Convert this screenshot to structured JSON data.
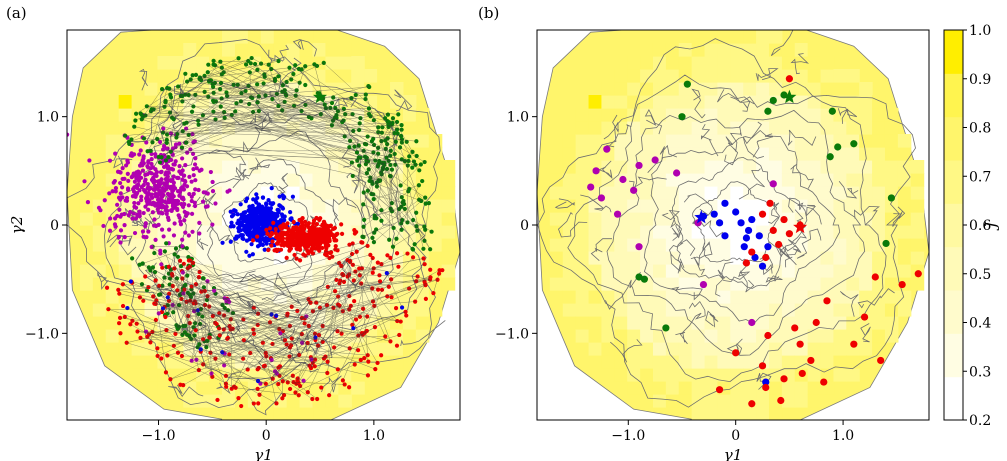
{
  "figure": {
    "panels": [
      {
        "label": "(a)"
      },
      {
        "label": "(b)"
      }
    ]
  },
  "chart_data": [
    {
      "type": "scatter",
      "panel": "(a)",
      "title": "",
      "xlabel": "γ1",
      "ylabel": "γ2",
      "xlim": [
        -1.85,
        1.8
      ],
      "ylim": [
        -1.8,
        1.8
      ],
      "xticks": [
        {
          "value": -1.0,
          "label": "−1.0"
        },
        {
          "value": 0,
          "label": "0"
        },
        {
          "value": 1.0,
          "label": "1.0"
        }
      ],
      "yticks": [
        {
          "value": 1.0,
          "label": "1.0"
        },
        {
          "value": 0,
          "label": "0"
        },
        {
          "value": -1.0,
          "label": "−1.0"
        }
      ],
      "background": "filled contour of J over the (γ1, γ2) plane with grey contour lines; J is lowest (white) near the centre and highest (yellow) at the outer edge",
      "grid": false,
      "series": [
        {
          "color": "#b000b0",
          "region": "cluster",
          "center": [
            -1.0,
            0.35
          ],
          "spread": [
            0.22,
            0.22
          ],
          "count": 450
        },
        {
          "color": "#0000ee",
          "region": "cluster",
          "center": [
            -0.05,
            0.02
          ],
          "spread": [
            0.12,
            0.1
          ],
          "count": 420
        },
        {
          "color": "#ee0000",
          "region": "cluster",
          "center": [
            0.38,
            -0.12
          ],
          "spread": [
            0.16,
            0.07
          ],
          "count": 420
        },
        {
          "color": "#0a7a0a",
          "region": "ring",
          "angle_range_deg": [
            20,
            150
          ],
          "radius": [
            1.05,
            1.6
          ],
          "count": 260
        },
        {
          "color": "#0a7a0a",
          "region": "ring",
          "angle_range_deg": [
            -10,
            40
          ],
          "radius": [
            0.9,
            1.55
          ],
          "count": 110
        },
        {
          "color": "#0a7a0a",
          "region": "ring",
          "angle_range_deg": [
            190,
            250
          ],
          "radius": [
            0.75,
            1.3
          ],
          "count": 90
        },
        {
          "color": "#ee0000",
          "region": "ring",
          "angle_range_deg": [
            200,
            350
          ],
          "radius": [
            0.75,
            1.7
          ],
          "count": 330
        },
        {
          "color": "#b000b0",
          "region": "ring",
          "angle_range_deg": [
            190,
            300
          ],
          "radius": [
            0.7,
            1.5
          ],
          "count": 30
        },
        {
          "color": "#0000ee",
          "region": "ring",
          "angle_range_deg": [
            200,
            340
          ],
          "radius": [
            0.8,
            1.5
          ],
          "count": 14
        }
      ]
    },
    {
      "type": "scatter",
      "panel": "(b)",
      "title": "",
      "xlabel": "γ1",
      "ylabel": "",
      "xlim": [
        -1.85,
        1.8
      ],
      "ylim": [
        -1.8,
        1.8
      ],
      "xticks": [
        {
          "value": -1.0,
          "label": "−1.0"
        },
        {
          "value": 0,
          "label": "0"
        },
        {
          "value": 1.0,
          "label": "1.0"
        }
      ],
      "yticks": [
        {
          "value": 1.0,
          "label": "1.0"
        },
        {
          "value": 0,
          "label": "0"
        },
        {
          "value": -1.0,
          "label": "−1.0"
        }
      ],
      "grid": false,
      "series": [
        {
          "color": "#b000b0",
          "points": [
            [
              -1.2,
              0.7
            ],
            [
              -0.75,
              0.6
            ],
            [
              -1.3,
              0.5
            ],
            [
              -0.9,
              0.55
            ],
            [
              -1.05,
              0.42
            ],
            [
              -1.25,
              0.25
            ],
            [
              -0.95,
              0.32
            ],
            [
              -0.55,
              0.48
            ],
            [
              -1.35,
              0.35
            ],
            [
              -1.1,
              0.1
            ],
            [
              -0.9,
              -0.2
            ],
            [
              -0.35,
              0.02
            ],
            [
              0.35,
              0.38
            ],
            [
              -0.3,
              -0.55
            ],
            [
              0.15,
              -0.9
            ]
          ]
        },
        {
          "color": "#0000ee",
          "points": [
            [
              -0.3,
              0.08
            ],
            [
              -0.2,
              0.1
            ],
            [
              -0.15,
              0.02
            ],
            [
              -0.1,
              -0.1
            ],
            [
              0.05,
              0.02
            ],
            [
              0.1,
              -0.12
            ],
            [
              0.15,
              0.05
            ],
            [
              0.08,
              -0.2
            ],
            [
              0.22,
              -0.1
            ],
            [
              0.3,
              -0.2
            ],
            [
              0.18,
              -0.3
            ],
            [
              0.25,
              -0.38
            ],
            [
              0.0,
              0.12
            ],
            [
              -0.1,
              0.2
            ],
            [
              0.28,
              -1.45
            ],
            [
              0.12,
              -0.05
            ]
          ]
        },
        {
          "color": "#ee0000",
          "points": [
            [
              0.32,
              0.2
            ],
            [
              0.25,
              0.1
            ],
            [
              0.35,
              -0.05
            ],
            [
              0.45,
              0.05
            ],
            [
              0.5,
              -0.08
            ],
            [
              0.6,
              0.0
            ],
            [
              0.4,
              -0.18
            ],
            [
              0.28,
              -0.3
            ],
            [
              0.15,
              -0.25
            ],
            [
              0.1,
              -0.35
            ],
            [
              0.5,
              1.35
            ],
            [
              1.7,
              -0.45
            ],
            [
              1.55,
              -0.55
            ],
            [
              1.3,
              -0.48
            ],
            [
              0.85,
              -0.7
            ],
            [
              0.75,
              -0.9
            ],
            [
              1.2,
              -0.85
            ],
            [
              0.55,
              -0.95
            ],
            [
              0.3,
              -1.02
            ],
            [
              0.6,
              -1.1
            ],
            [
              0.25,
              -1.3
            ],
            [
              0.0,
              -1.18
            ],
            [
              0.28,
              -1.5
            ],
            [
              0.62,
              -1.37
            ],
            [
              0.82,
              -1.45
            ],
            [
              1.35,
              -1.25
            ],
            [
              0.42,
              -1.62
            ],
            [
              0.15,
              -1.65
            ],
            [
              -0.15,
              -1.52
            ],
            [
              0.7,
              -1.25
            ],
            [
              1.1,
              -1.1
            ],
            [
              0.45,
              -1.42
            ]
          ]
        },
        {
          "color": "#0a7a0a",
          "points": [
            [
              -0.45,
              1.3
            ],
            [
              -0.5,
              1.0
            ],
            [
              0.35,
              1.15
            ],
            [
              0.3,
              1.05
            ],
            [
              0.45,
              1.2
            ],
            [
              0.9,
              1.05
            ],
            [
              1.1,
              0.75
            ],
            [
              0.95,
              0.72
            ],
            [
              0.88,
              0.63
            ],
            [
              1.45,
              0.25
            ],
            [
              1.4,
              -0.17
            ],
            [
              -0.9,
              -0.48
            ],
            [
              -0.85,
              -0.5
            ],
            [
              -0.65,
              -0.95
            ]
          ]
        }
      ]
    }
  ],
  "colorbar": {
    "label": "J",
    "ticks": [
      "0.2",
      "0.3",
      "0.4",
      "0.5",
      "0.6",
      "0.7",
      "0.8",
      "0.9",
      "1.0"
    ],
    "min": 0.2,
    "max": 1.0,
    "colors": [
      "#ffffff",
      "#fffde3",
      "#fffbcc",
      "#fffab8",
      "#fff9a1",
      "#fff885",
      "#fff56b",
      "#fff44f",
      "#ffee00"
    ]
  },
  "star_markers": [
    {
      "panel": "(a)",
      "color": "#0a7a0a",
      "x": 0.5,
      "y": 1.18
    },
    {
      "panel": "(a)",
      "color": "#ee0000",
      "x": 0.55,
      "y": -0.02
    },
    {
      "panel": "(b)",
      "color": "#0a7a0a",
      "x": 0.5,
      "y": 1.18
    },
    {
      "panel": "(b)",
      "color": "#ee0000",
      "x": 0.6,
      "y": -0.02
    },
    {
      "panel": "(b)",
      "color": "#0000ee",
      "x": -0.32,
      "y": 0.07
    }
  ]
}
